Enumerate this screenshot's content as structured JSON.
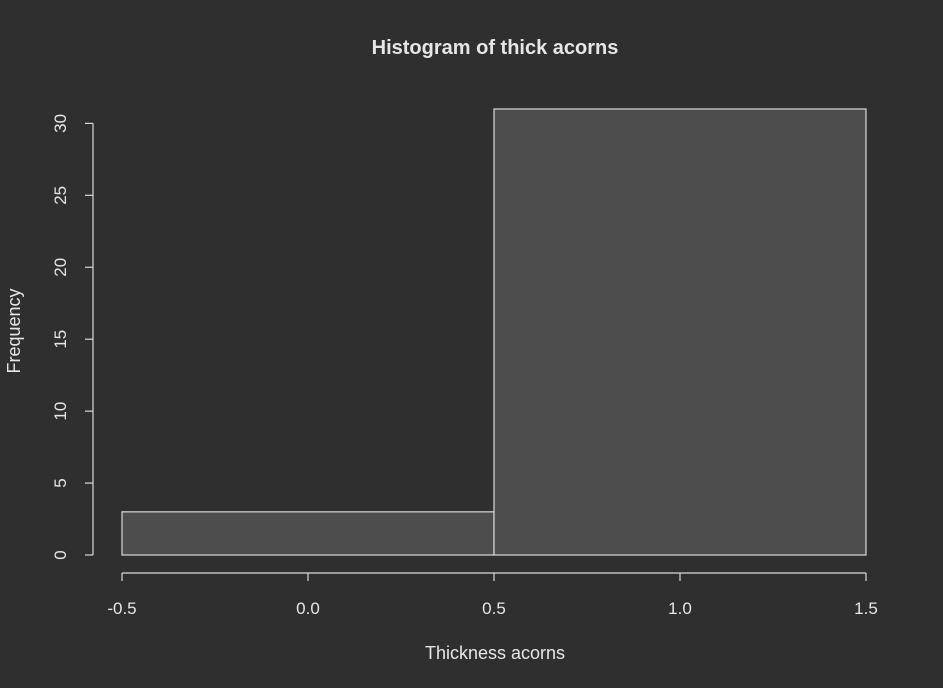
{
  "chart_data": {
    "type": "bar",
    "title": "Histogram of thick acorns",
    "xlabel": "Thickness acorns",
    "ylabel": "Frequency",
    "bins": [
      {
        "start": -0.5,
        "end": 0.5,
        "count": 3
      },
      {
        "start": 0.5,
        "end": 1.5,
        "count": 31
      }
    ],
    "xlim": [
      -0.5,
      1.5
    ],
    "ylim": [
      0,
      31
    ],
    "xticks": [
      -0.5,
      0.0,
      0.5,
      1.0,
      1.5
    ],
    "xtick_labels": [
      "-0.5",
      "0.0",
      "0.5",
      "1.0",
      "1.5"
    ],
    "yticks": [
      0,
      5,
      10,
      15,
      20,
      25,
      30
    ],
    "ytick_labels": [
      "0",
      "5",
      "10",
      "15",
      "20",
      "25",
      "30"
    ],
    "grid": false,
    "colors": {
      "background": "#2f2f2f",
      "bar_fill": "#4d4d4d",
      "foreground": "#d9d9d9"
    }
  }
}
